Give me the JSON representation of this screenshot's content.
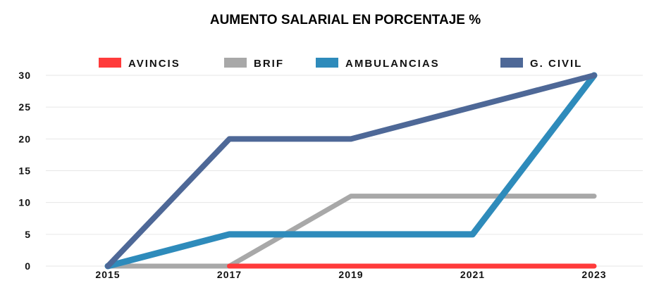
{
  "chart_data": {
    "type": "line",
    "title": "AUMENTO SALARIAL EN PORCENTAJE %",
    "x": [
      "2015",
      "2017",
      "2019",
      "2021",
      "2023"
    ],
    "ylim": [
      0,
      30
    ],
    "yticks": [
      "0",
      "5",
      "10",
      "15",
      "20",
      "25",
      "30"
    ],
    "grid": true,
    "legend_position": "top",
    "series": [
      {
        "name": "AVINCIS",
        "color": "#ff3b3b",
        "values": [
          null,
          0,
          0,
          0,
          0
        ]
      },
      {
        "name": "BRIF",
        "color": "#a8a8a8",
        "values": [
          0,
          0,
          11,
          11,
          11
        ]
      },
      {
        "name": "AMBULANCIAS",
        "color": "#2e8bbb",
        "values": [
          0,
          5,
          5,
          5,
          30
        ]
      },
      {
        "name": "G. CIVIL",
        "color": "#4e6897",
        "values": [
          0,
          20,
          20,
          25,
          30
        ]
      }
    ]
  }
}
